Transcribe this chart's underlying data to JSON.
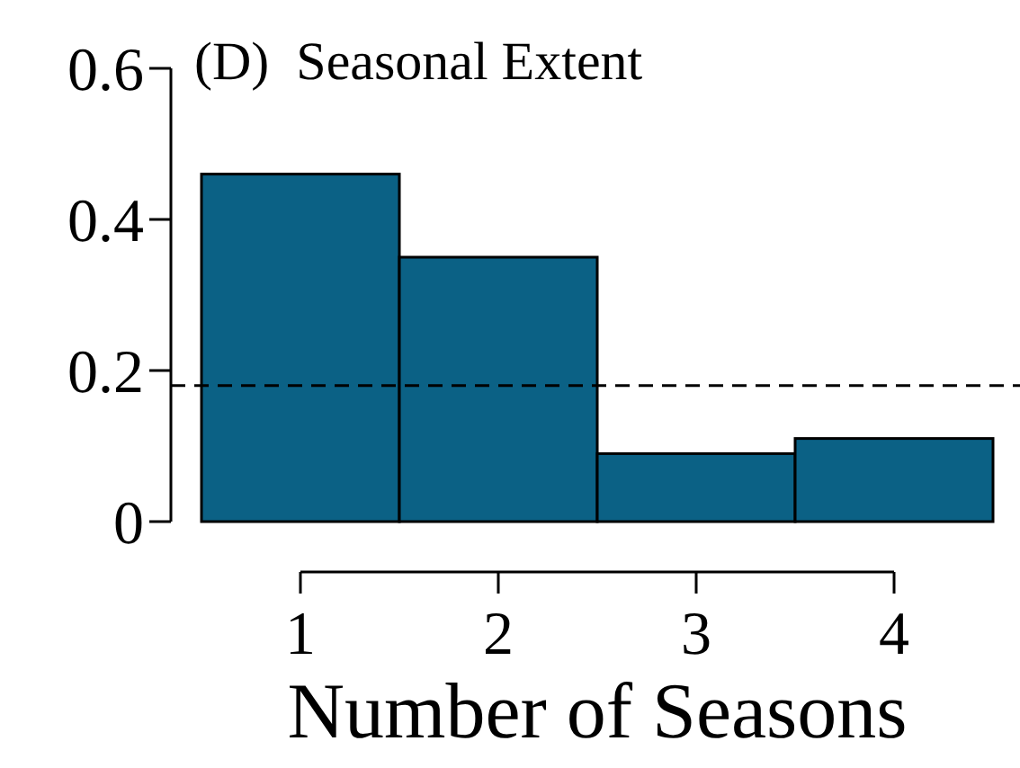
{
  "chart_data": {
    "type": "bar",
    "title": "(D)  Seasonal Extent",
    "xlabel": "Number of Seasons",
    "categories": [
      "1",
      "2",
      "3",
      "4"
    ],
    "values": [
      0.46,
      0.35,
      0.09,
      0.11
    ],
    "color": "#0b6185",
    "ylim": [
      0,
      0.6
    ],
    "yticks": [
      0,
      0.2,
      0.4,
      0.6
    ],
    "ref_lines": [
      {
        "axis": "y",
        "value": 0.18,
        "line_style": "dashed",
        "color": "#000000"
      }
    ]
  }
}
